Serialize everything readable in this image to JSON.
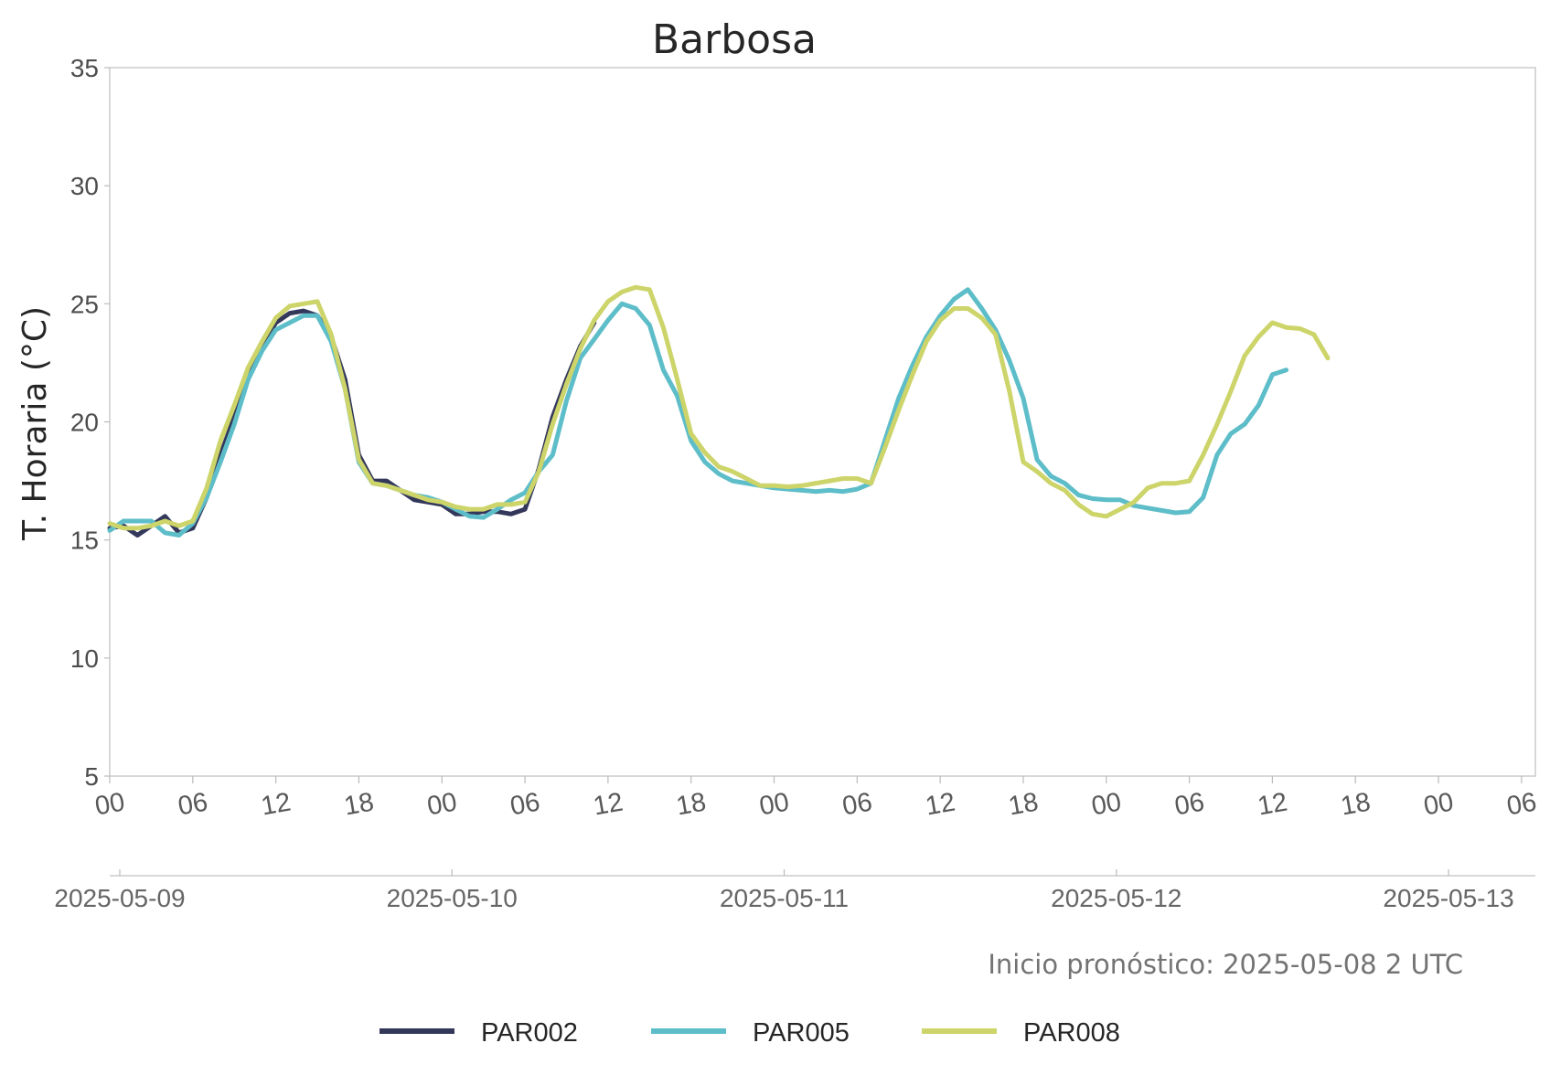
{
  "chart_data": {
    "type": "line",
    "title": "Barbosa",
    "ylabel": "T. Horaria (°C)",
    "ylim": [
      5,
      35
    ],
    "yticks": [
      5,
      10,
      15,
      20,
      25,
      30,
      35
    ],
    "xlim": [
      "2025-05-09 00:00",
      "2025-05-13 07:00"
    ],
    "hour_ticks": [
      "00",
      "06",
      "12",
      "18",
      "00",
      "06",
      "12",
      "18",
      "00",
      "06",
      "12",
      "18",
      "00",
      "06",
      "12",
      "18",
      "00",
      "06"
    ],
    "date_ticks": [
      "2025-05-09",
      "2025-05-10",
      "2025-05-11",
      "2025-05-12",
      "2025-05-13"
    ],
    "grid": false,
    "legend_position": "bottom-center",
    "annotation": "Inicio pronóstico: 2025-05-08 2 UTC",
    "series": [
      {
        "name": "PAR002",
        "color": "#33375a",
        "points": [
          [
            "2025-05-09 00:00",
            15.5
          ],
          [
            "2025-05-09 01:00",
            15.6
          ],
          [
            "2025-05-09 02:00",
            15.2
          ],
          [
            "2025-05-09 03:00",
            15.6
          ],
          [
            "2025-05-09 04:00",
            16.0
          ],
          [
            "2025-05-09 05:00",
            15.3
          ],
          [
            "2025-05-09 06:00",
            15.5
          ],
          [
            "2025-05-09 07:00",
            16.8
          ],
          [
            "2025-05-09 08:00",
            18.6
          ],
          [
            "2025-05-09 09:00",
            20.2
          ],
          [
            "2025-05-09 10:00",
            22.0
          ],
          [
            "2025-05-09 11:00",
            23.2
          ],
          [
            "2025-05-09 12:00",
            24.2
          ],
          [
            "2025-05-09 13:00",
            24.6
          ],
          [
            "2025-05-09 14:00",
            24.7
          ],
          [
            "2025-05-09 15:00",
            24.5
          ],
          [
            "2025-05-09 16:00",
            23.6
          ],
          [
            "2025-05-09 17:00",
            21.8
          ],
          [
            "2025-05-09 18:00",
            18.6
          ],
          [
            "2025-05-09 19:00",
            17.5
          ],
          [
            "2025-05-09 20:00",
            17.5
          ],
          [
            "2025-05-09 21:00",
            17.1
          ],
          [
            "2025-05-09 22:00",
            16.7
          ],
          [
            "2025-05-09 23:00",
            16.6
          ],
          [
            "2025-05-10 00:00",
            16.5
          ],
          [
            "2025-05-10 01:00",
            16.1
          ],
          [
            "2025-05-10 02:00",
            16.1
          ],
          [
            "2025-05-10 03:00",
            16.2
          ],
          [
            "2025-05-10 04:00",
            16.2
          ],
          [
            "2025-05-10 05:00",
            16.1
          ],
          [
            "2025-05-10 06:00",
            16.3
          ],
          [
            "2025-05-10 07:00",
            18.0
          ],
          [
            "2025-05-10 08:00",
            20.2
          ],
          [
            "2025-05-10 09:00",
            21.8
          ],
          [
            "2025-05-10 10:00",
            23.2
          ],
          [
            "2025-05-10 11:00",
            24.2
          ]
        ]
      },
      {
        "name": "PAR005",
        "color": "#5dbdc8",
        "points": [
          [
            "2025-05-09 00:00",
            15.4
          ],
          [
            "2025-05-09 01:00",
            15.8
          ],
          [
            "2025-05-09 02:00",
            15.8
          ],
          [
            "2025-05-09 03:00",
            15.8
          ],
          [
            "2025-05-09 04:00",
            15.3
          ],
          [
            "2025-05-09 05:00",
            15.2
          ],
          [
            "2025-05-09 06:00",
            15.7
          ],
          [
            "2025-05-09 07:00",
            16.8
          ],
          [
            "2025-05-09 08:00",
            18.3
          ],
          [
            "2025-05-09 09:00",
            19.9
          ],
          [
            "2025-05-09 10:00",
            21.8
          ],
          [
            "2025-05-09 11:00",
            23.0
          ],
          [
            "2025-05-09 12:00",
            23.9
          ],
          [
            "2025-05-09 13:00",
            24.2
          ],
          [
            "2025-05-09 14:00",
            24.5
          ],
          [
            "2025-05-09 15:00",
            24.5
          ],
          [
            "2025-05-09 16:00",
            23.4
          ],
          [
            "2025-05-09 17:00",
            21.4
          ],
          [
            "2025-05-09 18:00",
            18.3
          ],
          [
            "2025-05-09 19:00",
            17.4
          ],
          [
            "2025-05-09 20:00",
            17.3
          ],
          [
            "2025-05-09 21:00",
            17.1
          ],
          [
            "2025-05-09 22:00",
            16.9
          ],
          [
            "2025-05-09 23:00",
            16.8
          ],
          [
            "2025-05-10 00:00",
            16.6
          ],
          [
            "2025-05-10 01:00",
            16.3
          ],
          [
            "2025-05-10 02:00",
            16.0
          ],
          [
            "2025-05-10 03:00",
            15.95
          ],
          [
            "2025-05-10 04:00",
            16.3
          ],
          [
            "2025-05-10 05:00",
            16.7
          ],
          [
            "2025-05-10 06:00",
            17.0
          ],
          [
            "2025-05-10 07:00",
            17.9
          ],
          [
            "2025-05-10 08:00",
            18.6
          ],
          [
            "2025-05-10 09:00",
            20.9
          ],
          [
            "2025-05-10 10:00",
            22.7
          ],
          [
            "2025-05-10 11:00",
            23.5
          ],
          [
            "2025-05-10 12:00",
            24.3
          ],
          [
            "2025-05-10 13:00",
            25.0
          ],
          [
            "2025-05-10 14:00",
            24.8
          ],
          [
            "2025-05-10 15:00",
            24.1
          ],
          [
            "2025-05-10 16:00",
            22.2
          ],
          [
            "2025-05-10 17:00",
            21.1
          ],
          [
            "2025-05-10 18:00",
            19.2
          ],
          [
            "2025-05-10 19:00",
            18.3
          ],
          [
            "2025-05-10 20:00",
            17.8
          ],
          [
            "2025-05-10 21:00",
            17.5
          ],
          [
            "2025-05-10 22:00",
            17.4
          ],
          [
            "2025-05-10 23:00",
            17.3
          ],
          [
            "2025-05-11 00:00",
            17.2
          ],
          [
            "2025-05-11 01:00",
            17.15
          ],
          [
            "2025-05-11 02:00",
            17.1
          ],
          [
            "2025-05-11 03:00",
            17.05
          ],
          [
            "2025-05-11 04:00",
            17.1
          ],
          [
            "2025-05-11 05:00",
            17.05
          ],
          [
            "2025-05-11 06:00",
            17.15
          ],
          [
            "2025-05-11 07:00",
            17.4
          ],
          [
            "2025-05-11 08:00",
            19.2
          ],
          [
            "2025-05-11 09:00",
            21.0
          ],
          [
            "2025-05-11 10:00",
            22.4
          ],
          [
            "2025-05-11 11:00",
            23.6
          ],
          [
            "2025-05-11 12:00",
            24.5
          ],
          [
            "2025-05-11 13:00",
            25.2
          ],
          [
            "2025-05-11 14:00",
            25.6
          ],
          [
            "2025-05-11 15:00",
            24.8
          ],
          [
            "2025-05-11 16:00",
            23.9
          ],
          [
            "2025-05-11 17:00",
            22.6
          ],
          [
            "2025-05-11 18:00",
            21.0
          ],
          [
            "2025-05-11 19:00",
            18.4
          ],
          [
            "2025-05-11 20:00",
            17.7
          ],
          [
            "2025-05-11 21:00",
            17.4
          ],
          [
            "2025-05-11 22:00",
            16.9
          ],
          [
            "2025-05-11 23:00",
            16.75
          ],
          [
            "2025-05-12 00:00",
            16.7
          ],
          [
            "2025-05-12 01:00",
            16.7
          ],
          [
            "2025-05-12 02:00",
            16.45
          ],
          [
            "2025-05-12 03:00",
            16.35
          ],
          [
            "2025-05-12 04:00",
            16.25
          ],
          [
            "2025-05-12 05:00",
            16.15
          ],
          [
            "2025-05-12 06:00",
            16.2
          ],
          [
            "2025-05-12 07:00",
            16.8
          ],
          [
            "2025-05-12 08:00",
            18.6
          ],
          [
            "2025-05-12 09:00",
            19.5
          ],
          [
            "2025-05-12 10:00",
            19.9
          ],
          [
            "2025-05-12 11:00",
            20.7
          ],
          [
            "2025-05-12 12:00",
            22.0
          ],
          [
            "2025-05-12 13:00",
            22.2
          ]
        ]
      },
      {
        "name": "PAR008",
        "color": "#ccd46a",
        "points": [
          [
            "2025-05-09 00:00",
            15.7
          ],
          [
            "2025-05-09 01:00",
            15.5
          ],
          [
            "2025-05-09 02:00",
            15.5
          ],
          [
            "2025-05-09 03:00",
            15.6
          ],
          [
            "2025-05-09 04:00",
            15.8
          ],
          [
            "2025-05-09 05:00",
            15.6
          ],
          [
            "2025-05-09 06:00",
            15.8
          ],
          [
            "2025-05-09 07:00",
            17.2
          ],
          [
            "2025-05-09 08:00",
            19.2
          ],
          [
            "2025-05-09 09:00",
            20.7
          ],
          [
            "2025-05-09 10:00",
            22.3
          ],
          [
            "2025-05-09 11:00",
            23.4
          ],
          [
            "2025-05-09 12:00",
            24.4
          ],
          [
            "2025-05-09 13:00",
            24.9
          ],
          [
            "2025-05-09 14:00",
            25.0
          ],
          [
            "2025-05-09 15:00",
            25.1
          ],
          [
            "2025-05-09 16:00",
            23.7
          ],
          [
            "2025-05-09 17:00",
            21.4
          ],
          [
            "2025-05-09 18:00",
            18.4
          ],
          [
            "2025-05-09 19:00",
            17.4
          ],
          [
            "2025-05-09 20:00",
            17.3
          ],
          [
            "2025-05-09 21:00",
            17.1
          ],
          [
            "2025-05-09 22:00",
            16.9
          ],
          [
            "2025-05-09 23:00",
            16.7
          ],
          [
            "2025-05-10 00:00",
            16.6
          ],
          [
            "2025-05-10 01:00",
            16.4
          ],
          [
            "2025-05-10 02:00",
            16.3
          ],
          [
            "2025-05-10 03:00",
            16.3
          ],
          [
            "2025-05-10 04:00",
            16.5
          ],
          [
            "2025-05-10 05:00",
            16.5
          ],
          [
            "2025-05-10 06:00",
            16.6
          ],
          [
            "2025-05-10 07:00",
            17.9
          ],
          [
            "2025-05-10 08:00",
            19.9
          ],
          [
            "2025-05-10 09:00",
            21.6
          ],
          [
            "2025-05-10 10:00",
            23.1
          ],
          [
            "2025-05-10 11:00",
            24.3
          ],
          [
            "2025-05-10 12:00",
            25.1
          ],
          [
            "2025-05-10 13:00",
            25.5
          ],
          [
            "2025-05-10 14:00",
            25.7
          ],
          [
            "2025-05-10 15:00",
            25.6
          ],
          [
            "2025-05-10 16:00",
            24.0
          ],
          [
            "2025-05-10 17:00",
            21.8
          ],
          [
            "2025-05-10 18:00",
            19.5
          ],
          [
            "2025-05-10 19:00",
            18.7
          ],
          [
            "2025-05-10 20:00",
            18.1
          ],
          [
            "2025-05-10 21:00",
            17.9
          ],
          [
            "2025-05-10 22:00",
            17.6
          ],
          [
            "2025-05-10 23:00",
            17.3
          ],
          [
            "2025-05-11 00:00",
            17.3
          ],
          [
            "2025-05-11 01:00",
            17.25
          ],
          [
            "2025-05-11 02:00",
            17.3
          ],
          [
            "2025-05-11 03:00",
            17.4
          ],
          [
            "2025-05-11 04:00",
            17.5
          ],
          [
            "2025-05-11 05:00",
            17.6
          ],
          [
            "2025-05-11 06:00",
            17.6
          ],
          [
            "2025-05-11 07:00",
            17.4
          ],
          [
            "2025-05-11 08:00",
            18.9
          ],
          [
            "2025-05-11 09:00",
            20.5
          ],
          [
            "2025-05-11 10:00",
            22.0
          ],
          [
            "2025-05-11 11:00",
            23.4
          ],
          [
            "2025-05-11 12:00",
            24.3
          ],
          [
            "2025-05-11 13:00",
            24.8
          ],
          [
            "2025-05-11 14:00",
            24.8
          ],
          [
            "2025-05-11 15:00",
            24.4
          ],
          [
            "2025-05-11 16:00",
            23.7
          ],
          [
            "2025-05-11 17:00",
            21.3
          ],
          [
            "2025-05-11 18:00",
            18.3
          ],
          [
            "2025-05-11 19:00",
            17.9
          ],
          [
            "2025-05-11 20:00",
            17.4
          ],
          [
            "2025-05-11 21:00",
            17.1
          ],
          [
            "2025-05-11 22:00",
            16.5
          ],
          [
            "2025-05-11 23:00",
            16.1
          ],
          [
            "2025-05-12 00:00",
            16.0
          ],
          [
            "2025-05-12 01:00",
            16.3
          ],
          [
            "2025-05-12 02:00",
            16.6
          ],
          [
            "2025-05-12 03:00",
            17.2
          ],
          [
            "2025-05-12 04:00",
            17.4
          ],
          [
            "2025-05-12 05:00",
            17.4
          ],
          [
            "2025-05-12 06:00",
            17.5
          ],
          [
            "2025-05-12 07:00",
            18.6
          ],
          [
            "2025-05-12 08:00",
            19.9
          ],
          [
            "2025-05-12 09:00",
            21.3
          ],
          [
            "2025-05-12 10:00",
            22.8
          ],
          [
            "2025-05-12 11:00",
            23.6
          ],
          [
            "2025-05-12 12:00",
            24.2
          ],
          [
            "2025-05-12 13:00",
            24.0
          ],
          [
            "2025-05-12 14:00",
            23.95
          ],
          [
            "2025-05-12 15:00",
            23.7
          ],
          [
            "2025-05-12 16:00",
            22.7
          ]
        ]
      }
    ]
  }
}
